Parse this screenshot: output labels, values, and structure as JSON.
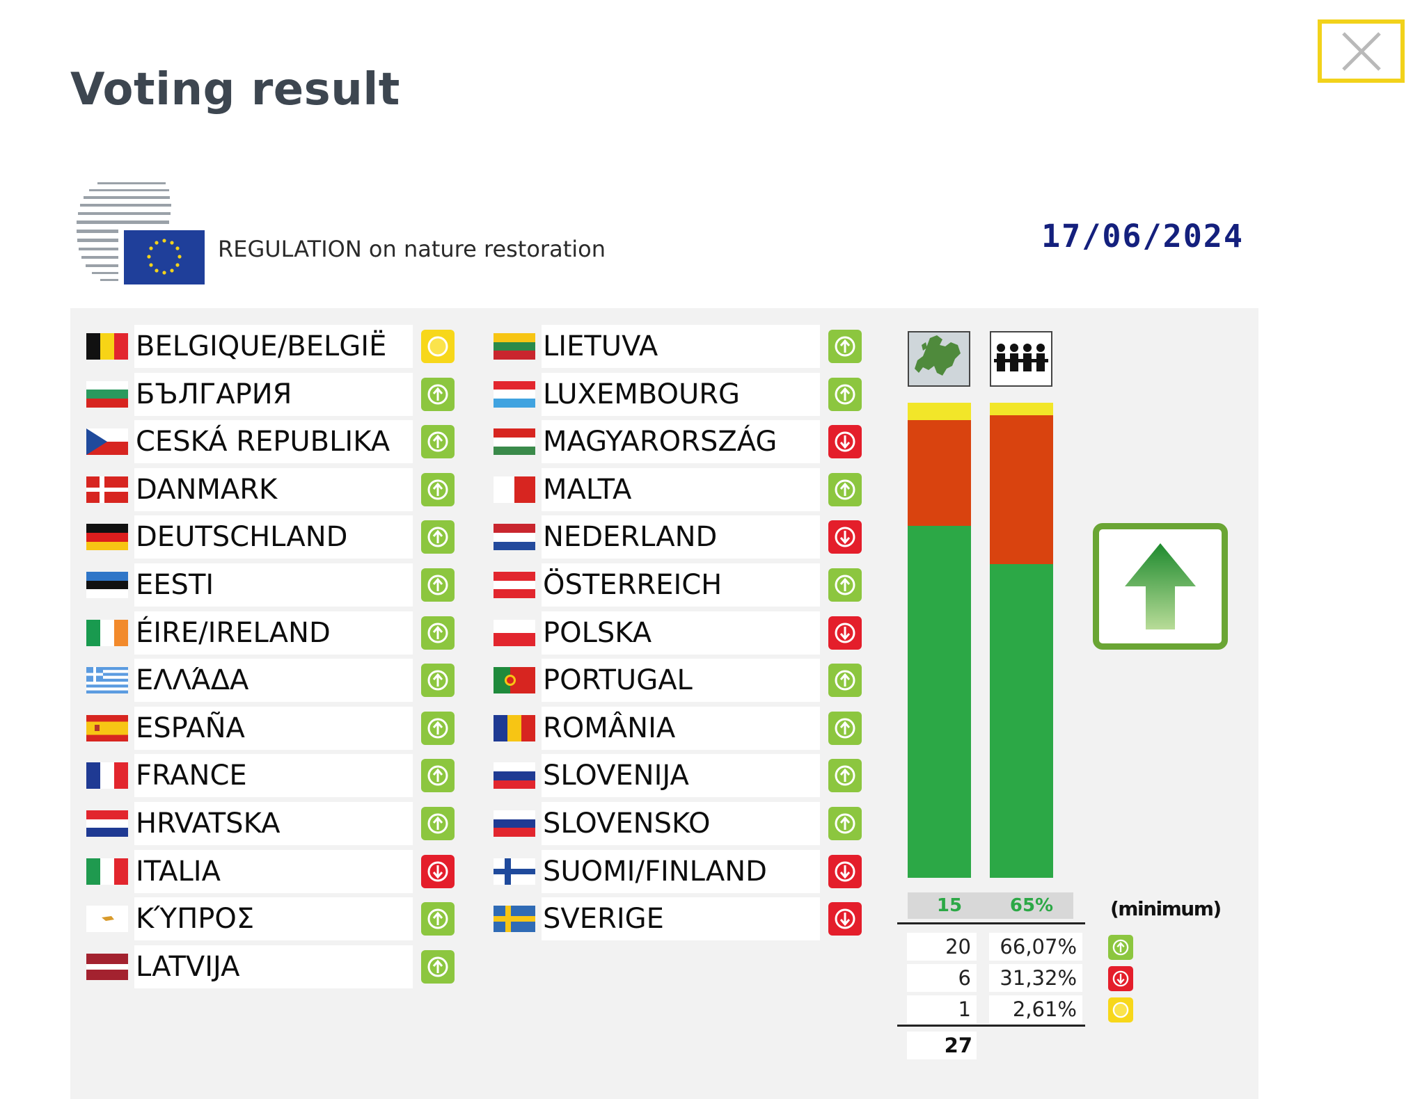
{
  "dialog": {
    "title": "Voting result"
  },
  "header": {
    "regulation": "REGULATION on nature restoration",
    "date": "17/06/2024"
  },
  "icons": {
    "close": "close-icon",
    "logo": "council-eu-logo",
    "member_states": "europe-map-icon",
    "population": "population-icon",
    "outcome": "arrow-up-icon",
    "yes": "vote-yes-icon",
    "no": "vote-no-icon",
    "abstain": "vote-abstain-icon"
  },
  "colors": {
    "yes": "#8cc63f",
    "no": "#e41e2b",
    "abstain": "#f7d71a",
    "bar_for": "#2ca846",
    "bar_against": "#d9430f",
    "bar_abstain": "#f2e629"
  },
  "countries_left": [
    {
      "name": "BELGIQUE/BELGIË",
      "vote": "abstain"
    },
    {
      "name": "БЪЛГАРИЯ",
      "vote": "yes"
    },
    {
      "name": "CESKÁ REPUBLIKA",
      "vote": "yes"
    },
    {
      "name": "DANMARK",
      "vote": "yes"
    },
    {
      "name": "DEUTSCHLAND",
      "vote": "yes"
    },
    {
      "name": "EESTI",
      "vote": "yes"
    },
    {
      "name": "ÉIRE/IRELAND",
      "vote": "yes"
    },
    {
      "name": "ΕΛΛΆΔΑ",
      "vote": "yes"
    },
    {
      "name": "ESPAÑA",
      "vote": "yes"
    },
    {
      "name": "FRANCE",
      "vote": "yes"
    },
    {
      "name": "HRVATSKA",
      "vote": "yes"
    },
    {
      "name": "ITALIA",
      "vote": "no"
    },
    {
      "name": "ΚΎΠΡΟΣ",
      "vote": "yes"
    },
    {
      "name": "LATVIJA",
      "vote": "yes"
    }
  ],
  "countries_right": [
    {
      "name": "LIETUVA",
      "vote": "yes"
    },
    {
      "name": "LUXEMBOURG",
      "vote": "yes"
    },
    {
      "name": "MAGYARORSZÁG",
      "vote": "no"
    },
    {
      "name": "MALTA",
      "vote": "yes"
    },
    {
      "name": "NEDERLAND",
      "vote": "no"
    },
    {
      "name": "ÖSTERREICH",
      "vote": "yes"
    },
    {
      "name": "POLSKA",
      "vote": "no"
    },
    {
      "name": "PORTUGAL",
      "vote": "yes"
    },
    {
      "name": "ROMÂNIA",
      "vote": "yes"
    },
    {
      "name": "SLOVENIJA",
      "vote": "yes"
    },
    {
      "name": "SLOVENSKO",
      "vote": "yes"
    },
    {
      "name": "SUOMI/FINLAND",
      "vote": "no"
    },
    {
      "name": "SVERIGE",
      "vote": "no"
    }
  ],
  "results": {
    "states_bar": {
      "for": 0.741,
      "against": 0.222,
      "abstain": 0.037
    },
    "population_bar": {
      "for": 0.6607,
      "against": 0.3132,
      "abstain": 0.0261
    },
    "threshold_states": "15",
    "threshold_population": "65%",
    "minimum_label": "(minimum)",
    "tally": [
      {
        "count": "20",
        "percent": "66,07%",
        "vote": "yes"
      },
      {
        "count": "6",
        "percent": "31,32%",
        "vote": "no"
      },
      {
        "count": "1",
        "percent": "2,61%",
        "vote": "abstain"
      }
    ],
    "total": "27",
    "outcome": "adopted"
  }
}
